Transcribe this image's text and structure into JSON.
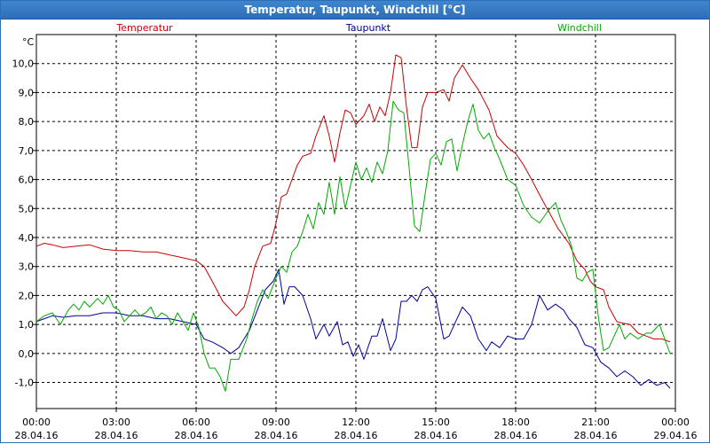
{
  "window": {
    "title": "Temperatur, Taupunkt, Windchill [°C]"
  },
  "chart_data": {
    "type": "line",
    "title": "Temperatur, Taupunkt, Windchill [°C]",
    "ylabel": "°C",
    "ylim": [
      -1.9,
      11.0
    ],
    "xlim": [
      0,
      24
    ],
    "grid": true,
    "legend_placement": "top",
    "y_ticks": [
      {
        "value": 10,
        "label": "10,0"
      },
      {
        "value": 9,
        "label": "9,0"
      },
      {
        "value": 8,
        "label": "8,0"
      },
      {
        "value": 7,
        "label": "7,0"
      },
      {
        "value": 6,
        "label": "6,0"
      },
      {
        "value": 5,
        "label": "5,0"
      },
      {
        "value": 4,
        "label": "4,0"
      },
      {
        "value": 3,
        "label": "3,0"
      },
      {
        "value": 2,
        "label": "2,0"
      },
      {
        "value": 1,
        "label": "1,0"
      },
      {
        "value": 0,
        "label": "0,0"
      },
      {
        "value": -1,
        "label": "-1,0"
      }
    ],
    "x_ticks": [
      {
        "value": 0,
        "time": "00:00",
        "date": "28.04.16"
      },
      {
        "value": 3,
        "time": "03:00",
        "date": "28.04.16"
      },
      {
        "value": 6,
        "time": "06:00",
        "date": "28.04.16"
      },
      {
        "value": 9,
        "time": "09:00",
        "date": "28.04.16"
      },
      {
        "value": 12,
        "time": "12:00",
        "date": "28.04.16"
      },
      {
        "value": 15,
        "time": "15:00",
        "date": "28.04.16"
      },
      {
        "value": 18,
        "time": "18:00",
        "date": "28.04.16"
      },
      {
        "value": 21,
        "time": "21:00",
        "date": "28.04.16"
      },
      {
        "value": 24,
        "time": "00:00",
        "date": "29.04.16"
      }
    ],
    "series": [
      {
        "name": "Temperatur",
        "color": "#cc0000",
        "points": [
          [
            0,
            3.7
          ],
          [
            0.3,
            3.8
          ],
          [
            0.6,
            3.75
          ],
          [
            1,
            3.65
          ],
          [
            1.5,
            3.7
          ],
          [
            2,
            3.75
          ],
          [
            2.5,
            3.6
          ],
          [
            3,
            3.55
          ],
          [
            3.5,
            3.55
          ],
          [
            4,
            3.5
          ],
          [
            4.5,
            3.5
          ],
          [
            5,
            3.4
          ],
          [
            5.5,
            3.3
          ],
          [
            6,
            3.2
          ],
          [
            6.3,
            3.0
          ],
          [
            6.6,
            2.5
          ],
          [
            7,
            1.8
          ],
          [
            7.3,
            1.5
          ],
          [
            7.5,
            1.3
          ],
          [
            7.8,
            1.6
          ],
          [
            8,
            2.2
          ],
          [
            8.2,
            3.0
          ],
          [
            8.5,
            3.7
          ],
          [
            8.8,
            3.8
          ],
          [
            9,
            4.5
          ],
          [
            9.2,
            5.4
          ],
          [
            9.4,
            5.5
          ],
          [
            9.6,
            6.0
          ],
          [
            9.8,
            6.5
          ],
          [
            10,
            6.8
          ],
          [
            10.3,
            6.9
          ],
          [
            10.5,
            7.5
          ],
          [
            10.8,
            8.2
          ],
          [
            11,
            7.5
          ],
          [
            11.2,
            6.6
          ],
          [
            11.4,
            7.6
          ],
          [
            11.6,
            8.4
          ],
          [
            11.8,
            8.3
          ],
          [
            12,
            7.9
          ],
          [
            12.3,
            8.2
          ],
          [
            12.5,
            8.6
          ],
          [
            12.7,
            8.0
          ],
          [
            12.9,
            8.5
          ],
          [
            13.1,
            8.2
          ],
          [
            13.3,
            9.0
          ],
          [
            13.5,
            10.3
          ],
          [
            13.7,
            10.2
          ],
          [
            13.9,
            8.5
          ],
          [
            14.1,
            7.1
          ],
          [
            14.3,
            7.1
          ],
          [
            14.5,
            8.5
          ],
          [
            14.7,
            9.0
          ],
          [
            15,
            9.0
          ],
          [
            15.3,
            9.1
          ],
          [
            15.5,
            8.7
          ],
          [
            15.7,
            9.5
          ],
          [
            16,
            9.95
          ],
          [
            16.3,
            9.5
          ],
          [
            16.6,
            9.1
          ],
          [
            17,
            8.4
          ],
          [
            17.3,
            7.5
          ],
          [
            17.7,
            7.1
          ],
          [
            18,
            6.9
          ],
          [
            18.3,
            6.5
          ],
          [
            18.6,
            6.0
          ],
          [
            19,
            5.3
          ],
          [
            19.3,
            4.8
          ],
          [
            19.6,
            4.3
          ],
          [
            20,
            3.8
          ],
          [
            20.3,
            3.2
          ],
          [
            20.6,
            2.9
          ],
          [
            20.8,
            2.5
          ],
          [
            21,
            2.3
          ],
          [
            21.3,
            2.2
          ],
          [
            21.5,
            1.6
          ],
          [
            21.8,
            1.1
          ],
          [
            22,
            1.05
          ],
          [
            22.3,
            1.0
          ],
          [
            22.6,
            0.7
          ],
          [
            22.9,
            0.6
          ],
          [
            23.2,
            0.5
          ],
          [
            23.5,
            0.5
          ],
          [
            23.8,
            0.4
          ]
        ]
      },
      {
        "name": "Taupunkt",
        "color": "#00009c",
        "points": [
          [
            0,
            1.1
          ],
          [
            0.3,
            1.2
          ],
          [
            0.6,
            1.3
          ],
          [
            1,
            1.25
          ],
          [
            1.5,
            1.3
          ],
          [
            2,
            1.3
          ],
          [
            2.5,
            1.4
          ],
          [
            3,
            1.4
          ],
          [
            3.5,
            1.3
          ],
          [
            4,
            1.3
          ],
          [
            4.5,
            1.2
          ],
          [
            5,
            1.2
          ],
          [
            5.5,
            1.1
          ],
          [
            6,
            1.0
          ],
          [
            6.3,
            0.5
          ],
          [
            6.6,
            0.4
          ],
          [
            7,
            0.2
          ],
          [
            7.3,
            0.0
          ],
          [
            7.6,
            0.2
          ],
          [
            8,
            0.8
          ],
          [
            8.3,
            1.5
          ],
          [
            8.6,
            2.2
          ],
          [
            8.9,
            2.5
          ],
          [
            9.1,
            2.9
          ],
          [
            9.3,
            1.7
          ],
          [
            9.5,
            2.3
          ],
          [
            9.7,
            2.3
          ],
          [
            10,
            2.0
          ],
          [
            10.3,
            1.2
          ],
          [
            10.5,
            0.5
          ],
          [
            10.8,
            1.0
          ],
          [
            11,
            0.6
          ],
          [
            11.3,
            1.1
          ],
          [
            11.5,
            0.3
          ],
          [
            11.7,
            0.4
          ],
          [
            11.9,
            -0.1
          ],
          [
            12.1,
            0.3
          ],
          [
            12.3,
            -0.2
          ],
          [
            12.6,
            0.6
          ],
          [
            12.8,
            0.6
          ],
          [
            13,
            1.2
          ],
          [
            13.3,
            0.1
          ],
          [
            13.5,
            0.5
          ],
          [
            13.7,
            1.8
          ],
          [
            13.9,
            1.8
          ],
          [
            14.1,
            2.0
          ],
          [
            14.3,
            1.8
          ],
          [
            14.5,
            2.2
          ],
          [
            14.7,
            2.3
          ],
          [
            15,
            1.9
          ],
          [
            15.3,
            0.5
          ],
          [
            15.5,
            0.6
          ],
          [
            15.7,
            1.0
          ],
          [
            16,
            1.6
          ],
          [
            16.3,
            1.3
          ],
          [
            16.6,
            0.5
          ],
          [
            16.9,
            0.1
          ],
          [
            17.1,
            0.4
          ],
          [
            17.4,
            0.2
          ],
          [
            17.7,
            0.6
          ],
          [
            18,
            0.5
          ],
          [
            18.3,
            0.5
          ],
          [
            18.6,
            1.0
          ],
          [
            18.9,
            2.0
          ],
          [
            19.2,
            1.5
          ],
          [
            19.5,
            1.7
          ],
          [
            19.8,
            1.5
          ],
          [
            20,
            1.2
          ],
          [
            20.3,
            0.9
          ],
          [
            20.6,
            0.3
          ],
          [
            20.9,
            0.2
          ],
          [
            21.2,
            -0.3
          ],
          [
            21.5,
            -0.5
          ],
          [
            21.8,
            -0.8
          ],
          [
            22.1,
            -0.6
          ],
          [
            22.4,
            -0.8
          ],
          [
            22.7,
            -1.1
          ],
          [
            23,
            -0.9
          ],
          [
            23.3,
            -1.1
          ],
          [
            23.6,
            -1.0
          ],
          [
            23.8,
            -1.2
          ]
        ]
      },
      {
        "name": "Windchill",
        "color": "#00aa00",
        "points": [
          [
            0,
            1.1
          ],
          [
            0.3,
            1.3
          ],
          [
            0.6,
            1.4
          ],
          [
            0.9,
            1.0
          ],
          [
            1.2,
            1.5
          ],
          [
            1.4,
            1.7
          ],
          [
            1.6,
            1.5
          ],
          [
            1.8,
            1.8
          ],
          [
            2,
            1.6
          ],
          [
            2.3,
            1.9
          ],
          [
            2.5,
            1.7
          ],
          [
            2.7,
            2.0
          ],
          [
            2.9,
            1.6
          ],
          [
            3.1,
            1.5
          ],
          [
            3.3,
            1.1
          ],
          [
            3.5,
            1.3
          ],
          [
            3.7,
            1.5
          ],
          [
            3.9,
            1.3
          ],
          [
            4.1,
            1.4
          ],
          [
            4.3,
            1.6
          ],
          [
            4.5,
            1.2
          ],
          [
            4.7,
            1.4
          ],
          [
            4.9,
            1.3
          ],
          [
            5.1,
            1.0
          ],
          [
            5.3,
            1.4
          ],
          [
            5.5,
            1.1
          ],
          [
            5.7,
            0.8
          ],
          [
            5.9,
            1.4
          ],
          [
            6.1,
            0.9
          ],
          [
            6.3,
            0.0
          ],
          [
            6.5,
            -0.5
          ],
          [
            6.7,
            -0.5
          ],
          [
            6.9,
            -0.8
          ],
          [
            7.1,
            -1.3
          ],
          [
            7.3,
            -0.2
          ],
          [
            7.6,
            -0.2
          ],
          [
            7.9,
            0.5
          ],
          [
            8.1,
            1.2
          ],
          [
            8.3,
            1.8
          ],
          [
            8.5,
            2.2
          ],
          [
            8.7,
            1.9
          ],
          [
            9,
            2.6
          ],
          [
            9.2,
            3.0
          ],
          [
            9.4,
            2.8
          ],
          [
            9.6,
            3.5
          ],
          [
            9.8,
            3.7
          ],
          [
            10,
            4.2
          ],
          [
            10.2,
            4.8
          ],
          [
            10.4,
            4.3
          ],
          [
            10.6,
            5.2
          ],
          [
            10.8,
            4.8
          ],
          [
            11,
            5.9
          ],
          [
            11.2,
            4.8
          ],
          [
            11.4,
            6.1
          ],
          [
            11.6,
            5.0
          ],
          [
            11.8,
            5.8
          ],
          [
            12,
            6.6
          ],
          [
            12.2,
            6.0
          ],
          [
            12.4,
            6.4
          ],
          [
            12.6,
            5.9
          ],
          [
            12.8,
            6.6
          ],
          [
            13,
            6.2
          ],
          [
            13.2,
            7.0
          ],
          [
            13.4,
            8.7
          ],
          [
            13.6,
            8.4
          ],
          [
            13.8,
            8.3
          ],
          [
            14,
            6.4
          ],
          [
            14.2,
            4.4
          ],
          [
            14.4,
            4.2
          ],
          [
            14.6,
            5.5
          ],
          [
            14.8,
            6.7
          ],
          [
            15,
            6.9
          ],
          [
            15.2,
            6.5
          ],
          [
            15.4,
            7.3
          ],
          [
            15.6,
            7.4
          ],
          [
            15.8,
            6.3
          ],
          [
            16,
            7.2
          ],
          [
            16.2,
            8.0
          ],
          [
            16.4,
            8.6
          ],
          [
            16.6,
            7.7
          ],
          [
            16.8,
            7.4
          ],
          [
            17,
            7.6
          ],
          [
            17.2,
            7.1
          ],
          [
            17.4,
            6.7
          ],
          [
            17.7,
            6.0
          ],
          [
            18,
            5.8
          ],
          [
            18.3,
            5.1
          ],
          [
            18.6,
            4.7
          ],
          [
            18.9,
            4.5
          ],
          [
            19.2,
            4.9
          ],
          [
            19.5,
            5.2
          ],
          [
            19.7,
            4.6
          ],
          [
            19.9,
            4.2
          ],
          [
            20.1,
            3.7
          ],
          [
            20.3,
            2.6
          ],
          [
            20.5,
            2.5
          ],
          [
            20.7,
            2.8
          ],
          [
            20.9,
            2.9
          ],
          [
            21.1,
            1.3
          ],
          [
            21.3,
            0.1
          ],
          [
            21.5,
            0.2
          ],
          [
            21.7,
            0.6
          ],
          [
            21.9,
            1.0
          ],
          [
            22.1,
            0.5
          ],
          [
            22.3,
            0.7
          ],
          [
            22.6,
            0.5
          ],
          [
            22.9,
            0.7
          ],
          [
            23.1,
            0.7
          ],
          [
            23.4,
            1.0
          ],
          [
            23.6,
            0.5
          ],
          [
            23.8,
            0.0
          ]
        ]
      }
    ]
  }
}
